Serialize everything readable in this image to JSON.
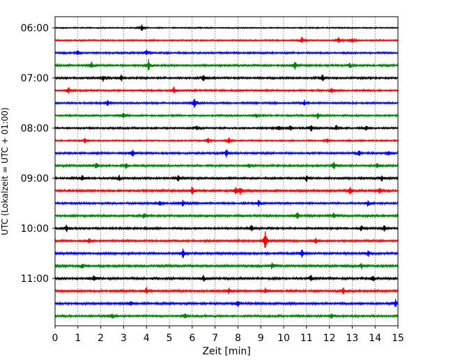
{
  "chart_data": {
    "type": "line",
    "xlabel": "Zeit  [min]",
    "ylabel": "UTC (Lokalzeit = UTC + 01:00)",
    "xlim": [
      0,
      15
    ],
    "x_ticks": [
      0,
      1,
      2,
      3,
      4,
      5,
      6,
      7,
      8,
      9,
      10,
      11,
      12,
      13,
      14,
      15
    ],
    "x_grid": true,
    "y_tick_labels": [
      "06:00",
      "07:00",
      "08:00",
      "09:00",
      "10:00",
      "11:00"
    ],
    "trace_minutes": 15,
    "trace_count": 24,
    "trace_colors": [
      "#000000",
      "#ff0000",
      "#0000ff",
      "#008000"
    ],
    "traces": [
      {
        "start": "06:00",
        "color": "#000000",
        "amplitude": 0.12,
        "events": [
          {
            "t": 3.8,
            "a": 0.7
          }
        ]
      },
      {
        "start": "06:15",
        "color": "#ff0000",
        "amplitude": 0.15,
        "events": [
          {
            "t": 10.8,
            "a": 0.6
          },
          {
            "t": 12.4,
            "a": 0.6
          },
          {
            "t": 13.0,
            "a": 0.55
          }
        ]
      },
      {
        "start": "06:30",
        "color": "#0000ff",
        "amplitude": 0.18,
        "events": [
          {
            "t": 1.0,
            "a": 0.6
          },
          {
            "t": 4.0,
            "a": 0.55
          }
        ]
      },
      {
        "start": "06:45",
        "color": "#008000",
        "amplitude": 0.2,
        "events": [
          {
            "t": 1.6,
            "a": 0.6
          },
          {
            "t": 4.1,
            "a": 1.0
          },
          {
            "t": 10.5,
            "a": 0.7
          },
          {
            "t": 12.9,
            "a": 0.5
          }
        ]
      },
      {
        "start": "07:00",
        "color": "#000000",
        "amplitude": 0.2,
        "events": [
          {
            "t": 2.1,
            "a": 0.55
          },
          {
            "t": 2.9,
            "a": 0.6
          },
          {
            "t": 6.5,
            "a": 0.6
          },
          {
            "t": 11.7,
            "a": 0.55
          }
        ]
      },
      {
        "start": "07:15",
        "color": "#ff0000",
        "amplitude": 0.18,
        "events": [
          {
            "t": 0.6,
            "a": 0.6
          },
          {
            "t": 5.2,
            "a": 0.6
          },
          {
            "t": 12.1,
            "a": 0.5
          }
        ]
      },
      {
        "start": "07:30",
        "color": "#0000ff",
        "amplitude": 0.18,
        "events": [
          {
            "t": 6.1,
            "a": 1.3
          },
          {
            "t": 2.3,
            "a": 0.55
          },
          {
            "t": 10.9,
            "a": 0.5
          }
        ]
      },
      {
        "start": "07:45",
        "color": "#008000",
        "amplitude": 0.18,
        "events": [
          {
            "t": 3.0,
            "a": 0.55
          },
          {
            "t": 8.8,
            "a": 0.5
          },
          {
            "t": 11.5,
            "a": 0.55
          }
        ]
      },
      {
        "start": "08:00",
        "color": "#000000",
        "amplitude": 0.18,
        "events": [
          {
            "t": 6.2,
            "a": 0.55
          },
          {
            "t": 9.8,
            "a": 0.55
          },
          {
            "t": 10.3,
            "a": 0.55
          },
          {
            "t": 11.2,
            "a": 0.6
          },
          {
            "t": 12.3,
            "a": 0.55
          },
          {
            "t": 13.6,
            "a": 0.5
          }
        ]
      },
      {
        "start": "08:15",
        "color": "#ff0000",
        "amplitude": 0.15,
        "events": [
          {
            "t": 1.3,
            "a": 0.5
          },
          {
            "t": 6.7,
            "a": 0.5
          },
          {
            "t": 7.6,
            "a": 0.55
          },
          {
            "t": 11.9,
            "a": 0.45
          }
        ]
      },
      {
        "start": "08:30",
        "color": "#0000ff",
        "amplitude": 0.2,
        "events": [
          {
            "t": 3.4,
            "a": 0.6
          },
          {
            "t": 7.5,
            "a": 0.8
          },
          {
            "t": 13.3,
            "a": 0.55
          },
          {
            "t": 14.6,
            "a": 0.5
          }
        ]
      },
      {
        "start": "08:45",
        "color": "#008000",
        "amplitude": 0.2,
        "events": [
          {
            "t": 1.8,
            "a": 0.6
          },
          {
            "t": 3.1,
            "a": 0.5
          },
          {
            "t": 8.5,
            "a": 0.55
          },
          {
            "t": 12.2,
            "a": 0.65
          },
          {
            "t": 14.1,
            "a": 0.55
          }
        ]
      },
      {
        "start": "09:00",
        "color": "#000000",
        "amplitude": 0.2,
        "events": [
          {
            "t": 1.2,
            "a": 0.55
          },
          {
            "t": 2.8,
            "a": 0.5
          },
          {
            "t": 5.4,
            "a": 0.55
          },
          {
            "t": 11.0,
            "a": 0.6
          },
          {
            "t": 14.3,
            "a": 0.55
          }
        ]
      },
      {
        "start": "09:15",
        "color": "#ff0000",
        "amplitude": 0.22,
        "events": [
          {
            "t": 6.0,
            "a": 0.75
          },
          {
            "t": 7.9,
            "a": 0.7
          },
          {
            "t": 8.1,
            "a": 0.7
          },
          {
            "t": 12.9,
            "a": 0.6
          },
          {
            "t": 14.2,
            "a": 0.55
          }
        ]
      },
      {
        "start": "09:30",
        "color": "#0000ff",
        "amplitude": 0.2,
        "events": [
          {
            "t": 4.6,
            "a": 0.55
          },
          {
            "t": 5.6,
            "a": 0.55
          },
          {
            "t": 8.9,
            "a": 0.55
          },
          {
            "t": 13.7,
            "a": 0.55
          }
        ]
      },
      {
        "start": "09:45",
        "color": "#008000",
        "amplitude": 0.22,
        "events": [
          {
            "t": 3.9,
            "a": 0.55
          },
          {
            "t": 10.6,
            "a": 0.7
          },
          {
            "t": 12.2,
            "a": 0.5
          }
        ]
      },
      {
        "start": "10:00",
        "color": "#000000",
        "amplitude": 0.2,
        "events": [
          {
            "t": 0.5,
            "a": 0.55
          },
          {
            "t": 8.6,
            "a": 0.6
          },
          {
            "t": 13.4,
            "a": 0.55
          },
          {
            "t": 14.4,
            "a": 0.5
          }
        ]
      },
      {
        "start": "10:15",
        "color": "#ff0000",
        "amplitude": 0.2,
        "events": [
          {
            "t": 9.2,
            "a": 1.6
          },
          {
            "t": 1.5,
            "a": 0.55
          },
          {
            "t": 11.4,
            "a": 0.5
          }
        ]
      },
      {
        "start": "10:30",
        "color": "#0000ff",
        "amplitude": 0.22,
        "events": [
          {
            "t": 5.6,
            "a": 0.8
          },
          {
            "t": 10.8,
            "a": 0.65
          },
          {
            "t": 13.7,
            "a": 0.5
          }
        ]
      },
      {
        "start": "10:45",
        "color": "#008000",
        "amplitude": 0.24,
        "events": [
          {
            "t": 1.2,
            "a": 0.55
          },
          {
            "t": 9.5,
            "a": 0.55
          },
          {
            "t": 13.4,
            "a": 0.55
          }
        ]
      },
      {
        "start": "11:00",
        "color": "#000000",
        "amplitude": 0.22,
        "events": [
          {
            "t": 1.7,
            "a": 0.55
          },
          {
            "t": 6.5,
            "a": 0.55
          },
          {
            "t": 11.2,
            "a": 0.6
          },
          {
            "t": 13.9,
            "a": 0.55
          }
        ]
      },
      {
        "start": "11:15",
        "color": "#ff0000",
        "amplitude": 0.22,
        "events": [
          {
            "t": 4.0,
            "a": 0.55
          },
          {
            "t": 7.6,
            "a": 0.6
          },
          {
            "t": 9.2,
            "a": 0.55
          },
          {
            "t": 12.6,
            "a": 0.55
          }
        ]
      },
      {
        "start": "11:30",
        "color": "#0000ff",
        "amplitude": 0.22,
        "events": [
          {
            "t": 3.3,
            "a": 0.5
          },
          {
            "t": 8.0,
            "a": 0.5
          },
          {
            "t": 14.9,
            "a": 0.65
          }
        ]
      },
      {
        "start": "11:45",
        "color": "#008000",
        "amplitude": 0.2,
        "events": [
          {
            "t": 2.5,
            "a": 0.45
          },
          {
            "t": 5.7,
            "a": 0.45
          },
          {
            "t": 12.1,
            "a": 0.45
          }
        ]
      }
    ]
  }
}
